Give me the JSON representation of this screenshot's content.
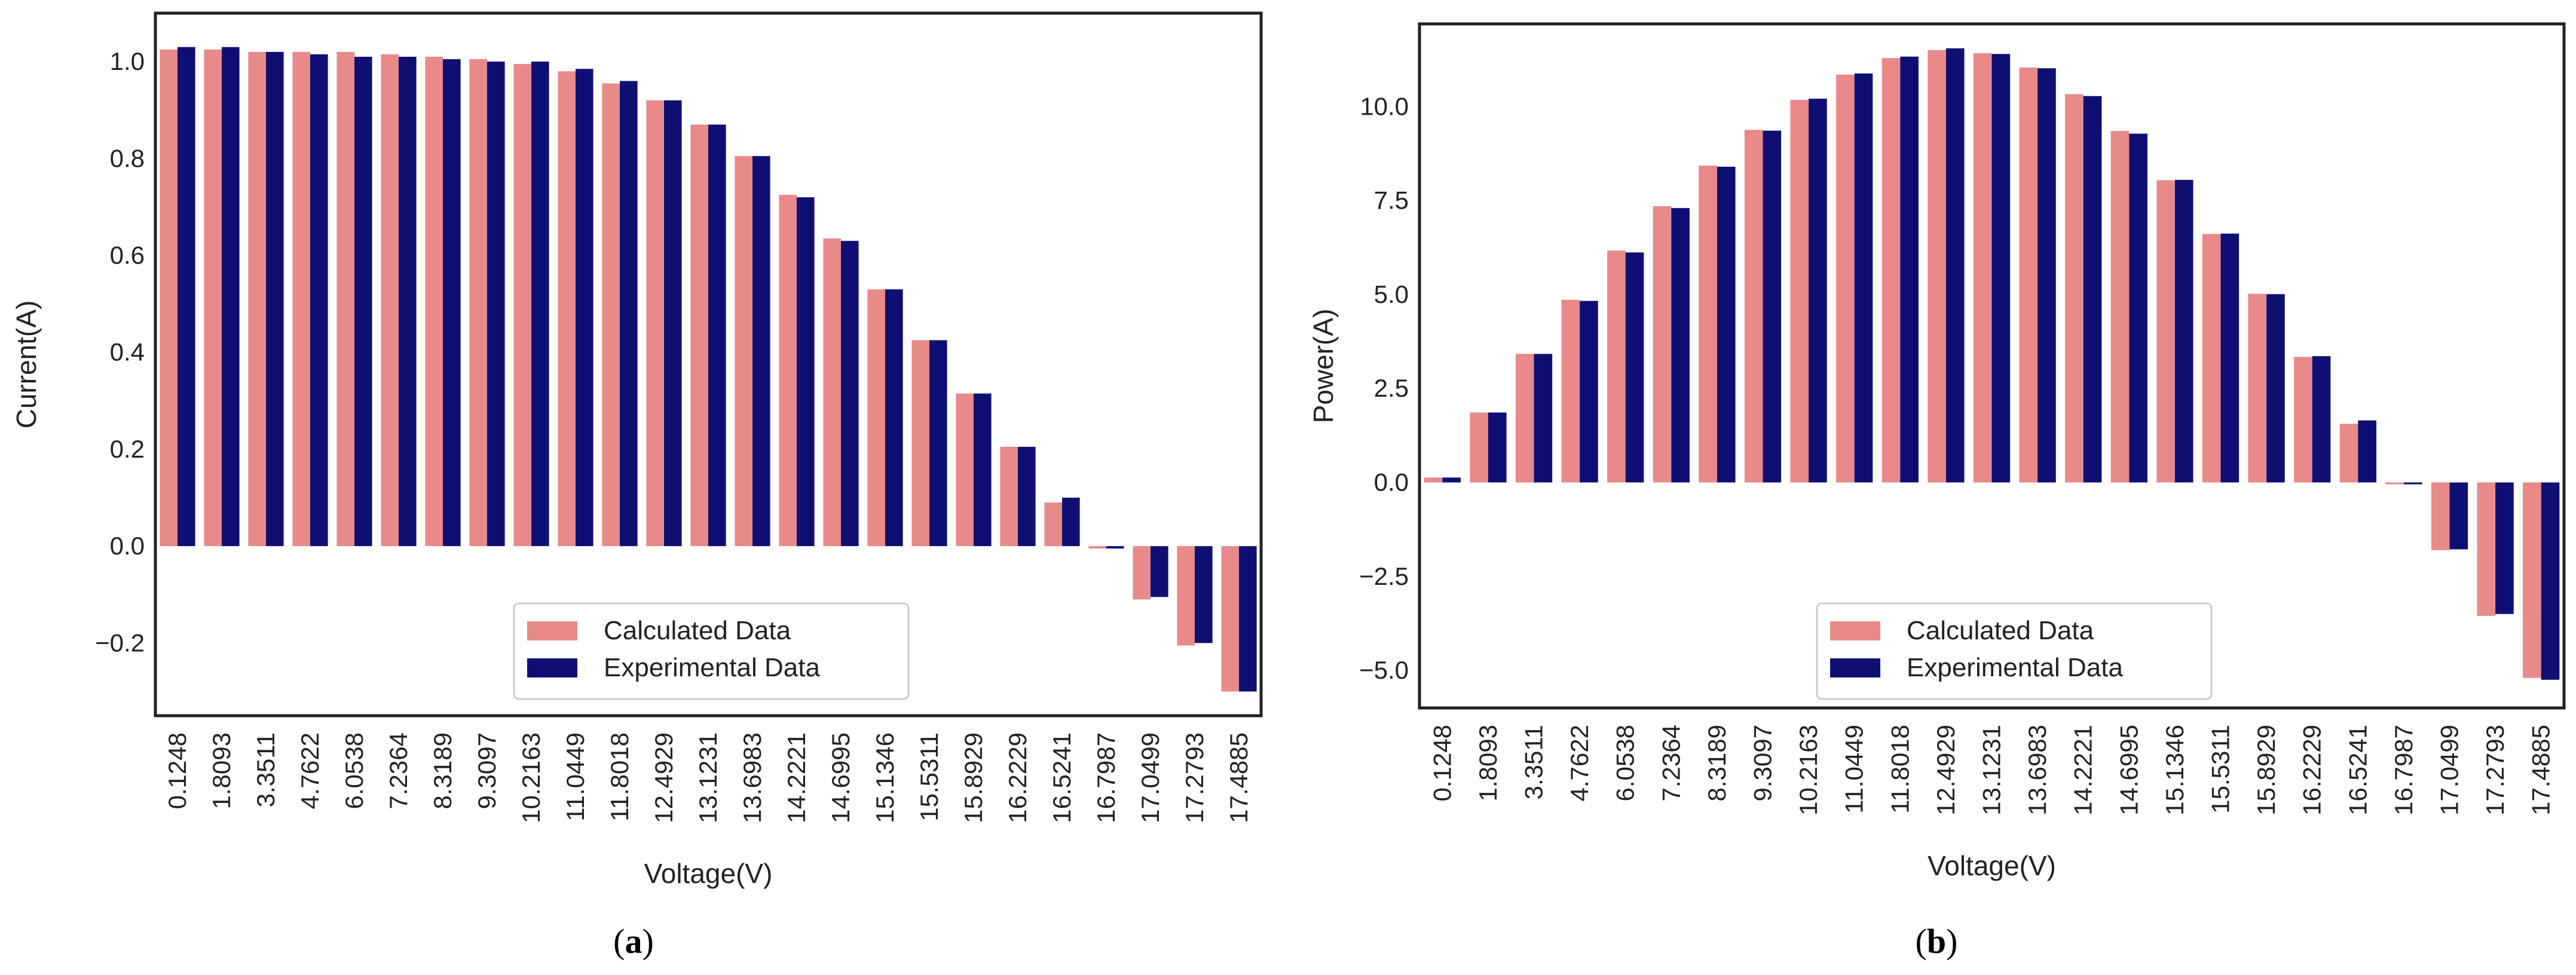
{
  "colors": {
    "calculated": "#e88a8a",
    "experimental": "#0f0f73"
  },
  "chart_data": [
    {
      "type": "bar",
      "caption": "a",
      "xlabel": "Voltage(V)",
      "ylabel": "Current(A)",
      "ylim": [
        -0.35,
        1.1
      ],
      "yticks": [
        -0.2,
        0.0,
        0.2,
        0.4,
        0.6,
        0.8,
        1.0
      ],
      "ytick_labels": [
        "−0.2",
        "0.0",
        "0.2",
        "0.4",
        "0.6",
        "0.8",
        "1.0"
      ],
      "legend": {
        "position": "lower-center"
      },
      "categories": [
        "0.1248",
        "1.8093",
        "3.3511",
        "4.7622",
        "6.0538",
        "7.2364",
        "8.3189",
        "9.3097",
        "10.2163",
        "11.0449",
        "11.8018",
        "12.4929",
        "13.1231",
        "13.6983",
        "14.2221",
        "14.6995",
        "15.1346",
        "15.5311",
        "15.8929",
        "16.2229",
        "16.5241",
        "16.7987",
        "17.0499",
        "17.2793",
        "17.4885"
      ],
      "series": [
        {
          "name": "Calculated Data",
          "color_key": "calculated",
          "values": [
            1.025,
            1.025,
            1.02,
            1.02,
            1.02,
            1.015,
            1.01,
            1.005,
            0.995,
            0.98,
            0.955,
            0.92,
            0.87,
            0.805,
            0.725,
            0.635,
            0.53,
            0.425,
            0.315,
            0.205,
            0.09,
            -0.005,
            -0.11,
            -0.205,
            -0.3
          ]
        },
        {
          "name": "Experimental Data",
          "color_key": "experimental",
          "values": [
            1.03,
            1.03,
            1.02,
            1.015,
            1.01,
            1.01,
            1.005,
            1.0,
            1.0,
            0.985,
            0.96,
            0.92,
            0.87,
            0.805,
            0.72,
            0.63,
            0.53,
            0.425,
            0.315,
            0.205,
            0.1,
            -0.005,
            -0.105,
            -0.2,
            -0.3
          ]
        }
      ]
    },
    {
      "type": "bar",
      "caption": "b",
      "xlabel": "Voltage(V)",
      "ylabel": "Power(A)",
      "ylim": [
        -6.0,
        12.2
      ],
      "yticks": [
        -5.0,
        -2.5,
        0.0,
        2.5,
        5.0,
        7.5,
        10.0
      ],
      "ytick_labels": [
        "−5.0",
        "−2.5",
        "0.0",
        "2.5",
        "5.0",
        "7.5",
        "10.0"
      ],
      "legend": {
        "position": "lower-center"
      },
      "categories": [
        "0.1248",
        "1.8093",
        "3.3511",
        "4.7622",
        "6.0538",
        "7.2364",
        "8.3189",
        "9.3097",
        "10.2163",
        "11.0449",
        "11.8018",
        "12.4929",
        "13.1231",
        "13.6983",
        "14.2221",
        "14.6995",
        "15.1346",
        "15.5311",
        "15.8929",
        "16.2229",
        "16.5241",
        "16.7987",
        "17.0499",
        "17.2793",
        "17.4885"
      ],
      "series": [
        {
          "name": "Calculated Data",
          "color_key": "calculated",
          "values": [
            0.13,
            1.86,
            3.42,
            4.86,
            6.17,
            7.35,
            8.43,
            9.38,
            10.18,
            10.85,
            11.29,
            11.5,
            11.42,
            11.04,
            10.33,
            9.35,
            8.04,
            6.61,
            5.02,
            3.34,
            1.56,
            -0.05,
            -1.8,
            -3.55,
            -5.2
          ]
        },
        {
          "name": "Experimental Data",
          "color_key": "experimental",
          "values": [
            0.13,
            1.86,
            3.42,
            4.83,
            6.12,
            7.3,
            8.4,
            9.36,
            10.21,
            10.88,
            11.33,
            11.55,
            11.4,
            11.02,
            10.28,
            9.28,
            8.05,
            6.62,
            5.01,
            3.36,
            1.65,
            -0.05,
            -1.78,
            -3.5,
            -5.25
          ]
        }
      ]
    }
  ]
}
